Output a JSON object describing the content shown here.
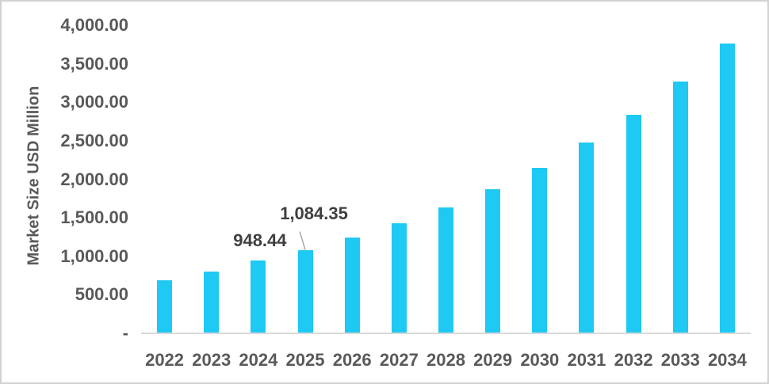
{
  "chart_data": {
    "type": "bar",
    "title": "",
    "xlabel": "",
    "ylabel": "Market Size USD Million",
    "categories": [
      "2022",
      "2023",
      "2024",
      "2025",
      "2026",
      "2027",
      "2028",
      "2029",
      "2030",
      "2031",
      "2032",
      "2033",
      "2034"
    ],
    "values": [
      690,
      805,
      948.44,
      1084.35,
      1240,
      1430,
      1635,
      1870,
      2150,
      2480,
      2835,
      3270,
      3765
    ],
    "ylim": [
      0,
      4000
    ],
    "ytick_step": 500,
    "ytick_labels_bottom_to_top": [
      "-",
      "500.00",
      "1,000.00",
      "1,500.00",
      "2,000.00",
      "2,500.00",
      "3,000.00",
      "3,500.00",
      "4,000.00"
    ],
    "grid": false,
    "legend": false,
    "data_labels": [
      {
        "category": "2024",
        "text": "948.44",
        "leader_line": false
      },
      {
        "category": "2025",
        "text": "1,084.35",
        "leader_line": true
      }
    ]
  },
  "colors": {
    "bar": "#1ec9f3",
    "axis_text": "#595959",
    "data_label_text": "#3f3f3f",
    "axis_line": "#d9d9d9",
    "leader_line": "#a6a6a6",
    "border": "#d2d2d2",
    "background": "#ffffff"
  }
}
